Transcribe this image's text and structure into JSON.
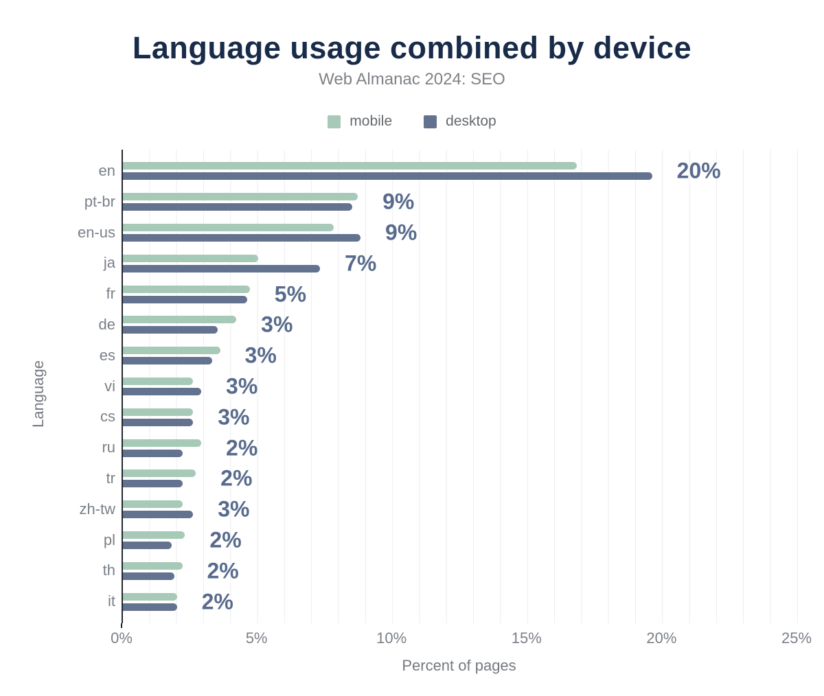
{
  "chart_data": {
    "type": "bar",
    "orientation": "horizontal",
    "title": "Language usage combined by device",
    "subtitle": "Web Almanac 2024: SEO",
    "xlabel": "Percent of pages",
    "ylabel": "Language",
    "xlim": [
      0,
      25
    ],
    "x_ticks": [
      {
        "label": "0%",
        "value": 0
      },
      {
        "label": "5%",
        "value": 5
      },
      {
        "label": "10%",
        "value": 10
      },
      {
        "label": "15%",
        "value": 15
      },
      {
        "label": "20%",
        "value": 20
      },
      {
        "label": "25%",
        "value": 25
      }
    ],
    "gridlines": {
      "show": true,
      "axis": "x",
      "interval": 1,
      "color": "#ededf0"
    },
    "legend_position": "top",
    "categories": [
      "en",
      "pt-br",
      "en-us",
      "ja",
      "fr",
      "de",
      "es",
      "vi",
      "cs",
      "ru",
      "tr",
      "zh-tw",
      "pl",
      "th",
      "it"
    ],
    "series": [
      {
        "name": "mobile",
        "color": "#a7c9b7",
        "values": [
          16.8,
          8.7,
          7.8,
          5.0,
          4.7,
          4.2,
          3.6,
          2.6,
          2.6,
          2.9,
          2.7,
          2.2,
          2.3,
          2.2,
          2.0
        ]
      },
      {
        "name": "desktop",
        "color": "#62728f",
        "values": [
          19.6,
          8.5,
          8.8,
          7.3,
          4.6,
          3.5,
          3.3,
          2.9,
          2.6,
          2.2,
          2.2,
          2.6,
          1.8,
          1.9,
          2.0
        ]
      }
    ],
    "value_labels": [
      "20%",
      "9%",
      "9%",
      "7%",
      "5%",
      "3%",
      "3%",
      "3%",
      "3%",
      "2%",
      "2%",
      "3%",
      "2%",
      "2%",
      "2%"
    ]
  },
  "colors": {
    "title": "#182b49",
    "subtitle": "#7e8286",
    "axis_text": "#7b8088",
    "value_label": "#586b8d",
    "axis_line": "#202631",
    "gridline": "#ededf0",
    "mobile": "#a7c9b7",
    "desktop": "#62728f",
    "background": "#ffffff"
  }
}
